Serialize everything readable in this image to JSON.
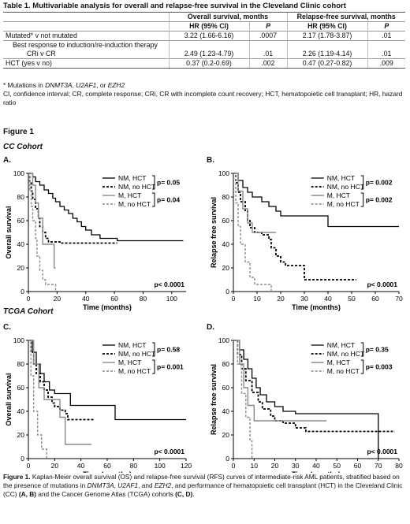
{
  "table": {
    "title": "Table 1. Multivariable analysis for overall and relapse-free survival in the Cleveland Clinic cohort",
    "group_headers": [
      "Overall survival, months",
      "Relapse-free survival, months"
    ],
    "col_headers": [
      "HR (95% CI)",
      "P",
      "HR (95% CI)",
      "P"
    ],
    "rows": [
      {
        "label": "Mutated* v not mutated",
        "os_hr": "3.22 (1.66-6.16)",
        "os_p": ".0007",
        "rfs_hr": "2.17 (1.78-3.87)",
        "rfs_p": ".01"
      },
      {
        "label": "Best response to induction/re-induction therapy",
        "os_hr": "",
        "os_p": "",
        "rfs_hr": "",
        "rfs_p": ""
      },
      {
        "label": "CRi v CR",
        "os_hr": "2.49 (1.23-4.79)",
        "os_p": ".01",
        "rfs_hr": "2.26 (1.19-4.14)",
        "rfs_p": ".01"
      },
      {
        "label": "HCT (yes v no)",
        "os_hr": "0.37 (0.2-0.69)",
        "os_p": ".002",
        "rfs_hr": "0.47 (0.27-0.82)",
        "rfs_p": ".009"
      }
    ],
    "footnote_prefix": "* Mutations in ",
    "footnote_genes": [
      "DNMT3A",
      "U2AF1",
      "EZH2"
    ],
    "footnote_sep1": ", ",
    "footnote_sep2": ", or ",
    "abbreviations": "CI, confidence interval; CR, complete response; CRi, CR with incomplete count recovery; HCT, hematopoietic cell transplant; HR, hazard ratio"
  },
  "figure": {
    "label": "Figure 1",
    "cohort_cc": "CC Cohort",
    "cohort_tcga": "TCGA Cohort",
    "caption": {
      "lead": "Figure 1.",
      "text1": " Kaplan-Meier overall survival (OS) and relapse-free survival (RFS) curves of intermediate-risk AML patients, stratified based on the presence of mutations in ",
      "gene1": "DNMT3A",
      "sep1": ", ",
      "gene2": "U2AF1",
      "sep2": ", and ",
      "gene3": "EZH2",
      "text2": ", and performance of hematopoietic cell transplant (HCT) in the Cleveland Clinic (CC) ",
      "ab": "(A, B)",
      "text3": " and the Cancer Genome Atlas (TCGA) cohorts ",
      "cd": "(C, D)",
      "text4": "."
    }
  },
  "chart_data": [
    {
      "panel": "A.",
      "type": "line",
      "ylabel": "Overall survival",
      "xlabel": "Time (months)",
      "xlim": [
        0,
        110
      ],
      "ylim": [
        0,
        100
      ],
      "xticks": [
        0,
        20,
        40,
        60,
        80,
        100
      ],
      "yticks": [
        0,
        20,
        40,
        60,
        80,
        100
      ],
      "pvalues": [
        "p= 0.05",
        "p= 0.04"
      ],
      "overall_p": "p< 0.0001",
      "series": [
        {
          "name": "NM, HCT",
          "style": "solid-black",
          "points": [
            [
              0,
              100
            ],
            [
              3,
              97
            ],
            [
              5,
              93
            ],
            [
              8,
              90
            ],
            [
              11,
              86
            ],
            [
              14,
              83
            ],
            [
              17,
              79
            ],
            [
              19,
              76
            ],
            [
              22,
              72
            ],
            [
              25,
              69
            ],
            [
              28,
              66
            ],
            [
              31,
              62
            ],
            [
              34,
              59
            ],
            [
              37,
              55
            ],
            [
              40,
              52
            ],
            [
              44,
              48
            ],
            [
              50,
              45
            ],
            [
              55,
              45
            ],
            [
              60,
              45
            ],
            [
              62,
              43
            ],
            [
              108,
              43
            ]
          ]
        },
        {
          "name": "NM, no HCT",
          "style": "dashed-black",
          "points": [
            [
              0,
              100
            ],
            [
              1,
              93
            ],
            [
              2,
              85
            ],
            [
              3,
              78
            ],
            [
              5,
              70
            ],
            [
              7,
              62
            ],
            [
              8,
              55
            ],
            [
              10,
              50
            ],
            [
              12,
              45
            ],
            [
              14,
              42
            ],
            [
              22,
              41
            ],
            [
              40,
              41
            ],
            [
              62,
              41
            ]
          ]
        },
        {
          "name": "M, HCT",
          "style": "solid-gray",
          "points": [
            [
              0,
              100
            ],
            [
              3,
              90
            ],
            [
              5,
              75
            ],
            [
              7,
              62
            ],
            [
              10,
              40
            ],
            [
              18,
              40
            ],
            [
              18,
              20
            ],
            [
              19,
              20
            ]
          ]
        },
        {
          "name": "M, no HCT",
          "style": "dashed-gray",
          "points": [
            [
              0,
              100
            ],
            [
              1,
              85
            ],
            [
              2,
              72
            ],
            [
              3,
              60
            ],
            [
              5,
              45
            ],
            [
              6,
              30
            ],
            [
              8,
              18
            ],
            [
              10,
              10
            ],
            [
              12,
              6
            ],
            [
              18,
              6
            ],
            [
              19,
              0
            ]
          ]
        }
      ]
    },
    {
      "panel": "B.",
      "type": "line",
      "ylabel": "Relapse free survival",
      "xlabel": "Time (months)",
      "xlim": [
        0,
        70
      ],
      "ylim": [
        0,
        100
      ],
      "xticks": [
        0,
        10,
        20,
        30,
        40,
        50,
        60,
        70
      ],
      "yticks": [
        0,
        20,
        40,
        60,
        80,
        100
      ],
      "pvalues": [
        "p= 0.002",
        "p= 0.002"
      ],
      "overall_p": "p< 0.0001",
      "series": [
        {
          "name": "NM, HCT",
          "style": "solid-black",
          "points": [
            [
              0,
              100
            ],
            [
              2,
              94
            ],
            [
              4,
              88
            ],
            [
              6,
              84
            ],
            [
              8,
              80
            ],
            [
              12,
              76
            ],
            [
              15,
              72
            ],
            [
              18,
              68
            ],
            [
              20,
              64
            ],
            [
              40,
              64
            ],
            [
              40,
              55
            ],
            [
              70,
              55
            ]
          ]
        },
        {
          "name": "NM, no HCT",
          "style": "dashed-black",
          "points": [
            [
              0,
              100
            ],
            [
              1,
              92
            ],
            [
              2,
              84
            ],
            [
              3,
              76
            ],
            [
              5,
              68
            ],
            [
              6,
              60
            ],
            [
              7,
              54
            ],
            [
              9,
              50
            ],
            [
              12,
              48
            ],
            [
              15,
              44
            ],
            [
              16,
              37
            ],
            [
              18,
              30
            ],
            [
              20,
              25
            ],
            [
              22,
              22
            ],
            [
              26,
              22
            ],
            [
              30,
              10
            ],
            [
              40,
              10
            ],
            [
              52,
              10
            ]
          ]
        },
        {
          "name": "M, HCT",
          "style": "solid-gray",
          "points": [
            [
              0,
              100
            ],
            [
              2,
              85
            ],
            [
              4,
              70
            ],
            [
              6,
              58
            ],
            [
              8,
              50
            ],
            [
              12,
              50
            ],
            [
              18,
              50
            ]
          ]
        },
        {
          "name": "M, no HCT",
          "style": "dashed-gray",
          "points": [
            [
              0,
              100
            ],
            [
              1,
              75
            ],
            [
              2,
              55
            ],
            [
              3,
              40
            ],
            [
              5,
              25
            ],
            [
              7,
              12
            ],
            [
              9,
              6
            ],
            [
              13,
              6
            ],
            [
              16,
              6
            ],
            [
              16,
              0
            ]
          ]
        }
      ]
    },
    {
      "panel": "C.",
      "type": "line",
      "ylabel": "Overall survival",
      "xlabel": "Time (months)",
      "xlim": [
        0,
        120
      ],
      "ylim": [
        0,
        100
      ],
      "xticks": [
        0,
        20,
        40,
        60,
        80,
        100,
        120
      ],
      "yticks": [
        0,
        20,
        40,
        60,
        80,
        100
      ],
      "pvalues": [
        "p= 0.58",
        "p= 0.001"
      ],
      "overall_p": "p< 0.0001",
      "series": [
        {
          "name": "NM, HCT",
          "style": "solid-black",
          "points": [
            [
              0,
              100
            ],
            [
              3,
              90
            ],
            [
              6,
              80
            ],
            [
              9,
              72
            ],
            [
              12,
              65
            ],
            [
              16,
              58
            ],
            [
              20,
              55
            ],
            [
              25,
              55
            ],
            [
              30,
              55
            ],
            [
              32,
              45
            ],
            [
              38,
              45
            ],
            [
              50,
              45
            ],
            [
              62,
              45
            ],
            [
              66,
              33
            ],
            [
              120,
              33
            ]
          ]
        },
        {
          "name": "NM, no HCT",
          "style": "dashed-black",
          "points": [
            [
              0,
              100
            ],
            [
              2,
              90
            ],
            [
              4,
              80
            ],
            [
              6,
              72
            ],
            [
              9,
              65
            ],
            [
              12,
              58
            ],
            [
              15,
              52
            ],
            [
              18,
              47
            ],
            [
              20,
              44
            ],
            [
              24,
              41
            ],
            [
              28,
              38
            ],
            [
              30,
              33
            ],
            [
              50,
              33
            ]
          ]
        },
        {
          "name": "M, HCT",
          "style": "solid-gray",
          "points": [
            [
              0,
              100
            ],
            [
              4,
              80
            ],
            [
              8,
              60
            ],
            [
              12,
              50
            ],
            [
              20,
              50
            ],
            [
              24,
              35
            ],
            [
              28,
              12
            ],
            [
              36,
              12
            ],
            [
              48,
              12
            ]
          ]
        },
        {
          "name": "M, no HCT",
          "style": "dashed-gray",
          "points": [
            [
              0,
              100
            ],
            [
              2,
              70
            ],
            [
              4,
              40
            ],
            [
              7,
              20
            ],
            [
              10,
              8
            ],
            [
              12,
              8
            ],
            [
              14,
              0
            ]
          ]
        }
      ]
    },
    {
      "panel": "D.",
      "type": "line",
      "ylabel": "Relapse free survival",
      "xlabel": "Time (months)",
      "xlim": [
        0,
        80
      ],
      "ylim": [
        0,
        100
      ],
      "xticks": [
        0,
        10,
        20,
        30,
        40,
        50,
        60,
        70,
        80
      ],
      "yticks": [
        0,
        20,
        40,
        60,
        80,
        100
      ],
      "pvalues": [
        "p= 0.35",
        "p= 0.003"
      ],
      "overall_p": "p< 0.0001",
      "series": [
        {
          "name": "NM, HCT",
          "style": "solid-black",
          "points": [
            [
              0,
              100
            ],
            [
              3,
              92
            ],
            [
              5,
              84
            ],
            [
              7,
              76
            ],
            [
              9,
              68
            ],
            [
              11,
              60
            ],
            [
              13,
              54
            ],
            [
              16,
              48
            ],
            [
              20,
              44
            ],
            [
              24,
              40
            ],
            [
              30,
              38
            ],
            [
              40,
              38
            ],
            [
              50,
              38
            ],
            [
              60,
              38
            ],
            [
              70,
              38
            ],
            [
              70,
              0
            ]
          ]
        },
        {
          "name": "NM, no HCT",
          "style": "dashed-black",
          "points": [
            [
              0,
              100
            ],
            [
              2,
              88
            ],
            [
              4,
              76
            ],
            [
              6,
              66
            ],
            [
              9,
              56
            ],
            [
              12,
              48
            ],
            [
              14,
              42
            ],
            [
              18,
              36
            ],
            [
              20,
              32
            ],
            [
              24,
              30
            ],
            [
              30,
              26
            ],
            [
              35,
              23
            ],
            [
              50,
              23
            ],
            [
              78,
              23
            ]
          ]
        },
        {
          "name": "M, HCT",
          "style": "solid-gray",
          "points": [
            [
              0,
              100
            ],
            [
              3,
              80
            ],
            [
              5,
              60
            ],
            [
              7,
              45
            ],
            [
              10,
              32
            ],
            [
              20,
              32
            ],
            [
              30,
              32
            ],
            [
              45,
              32
            ]
          ]
        },
        {
          "name": "M, no HCT",
          "style": "dashed-gray",
          "points": [
            [
              0,
              100
            ],
            [
              2,
              80
            ],
            [
              4,
              55
            ],
            [
              6,
              35
            ],
            [
              8,
              15
            ],
            [
              9,
              0
            ]
          ]
        }
      ]
    }
  ]
}
